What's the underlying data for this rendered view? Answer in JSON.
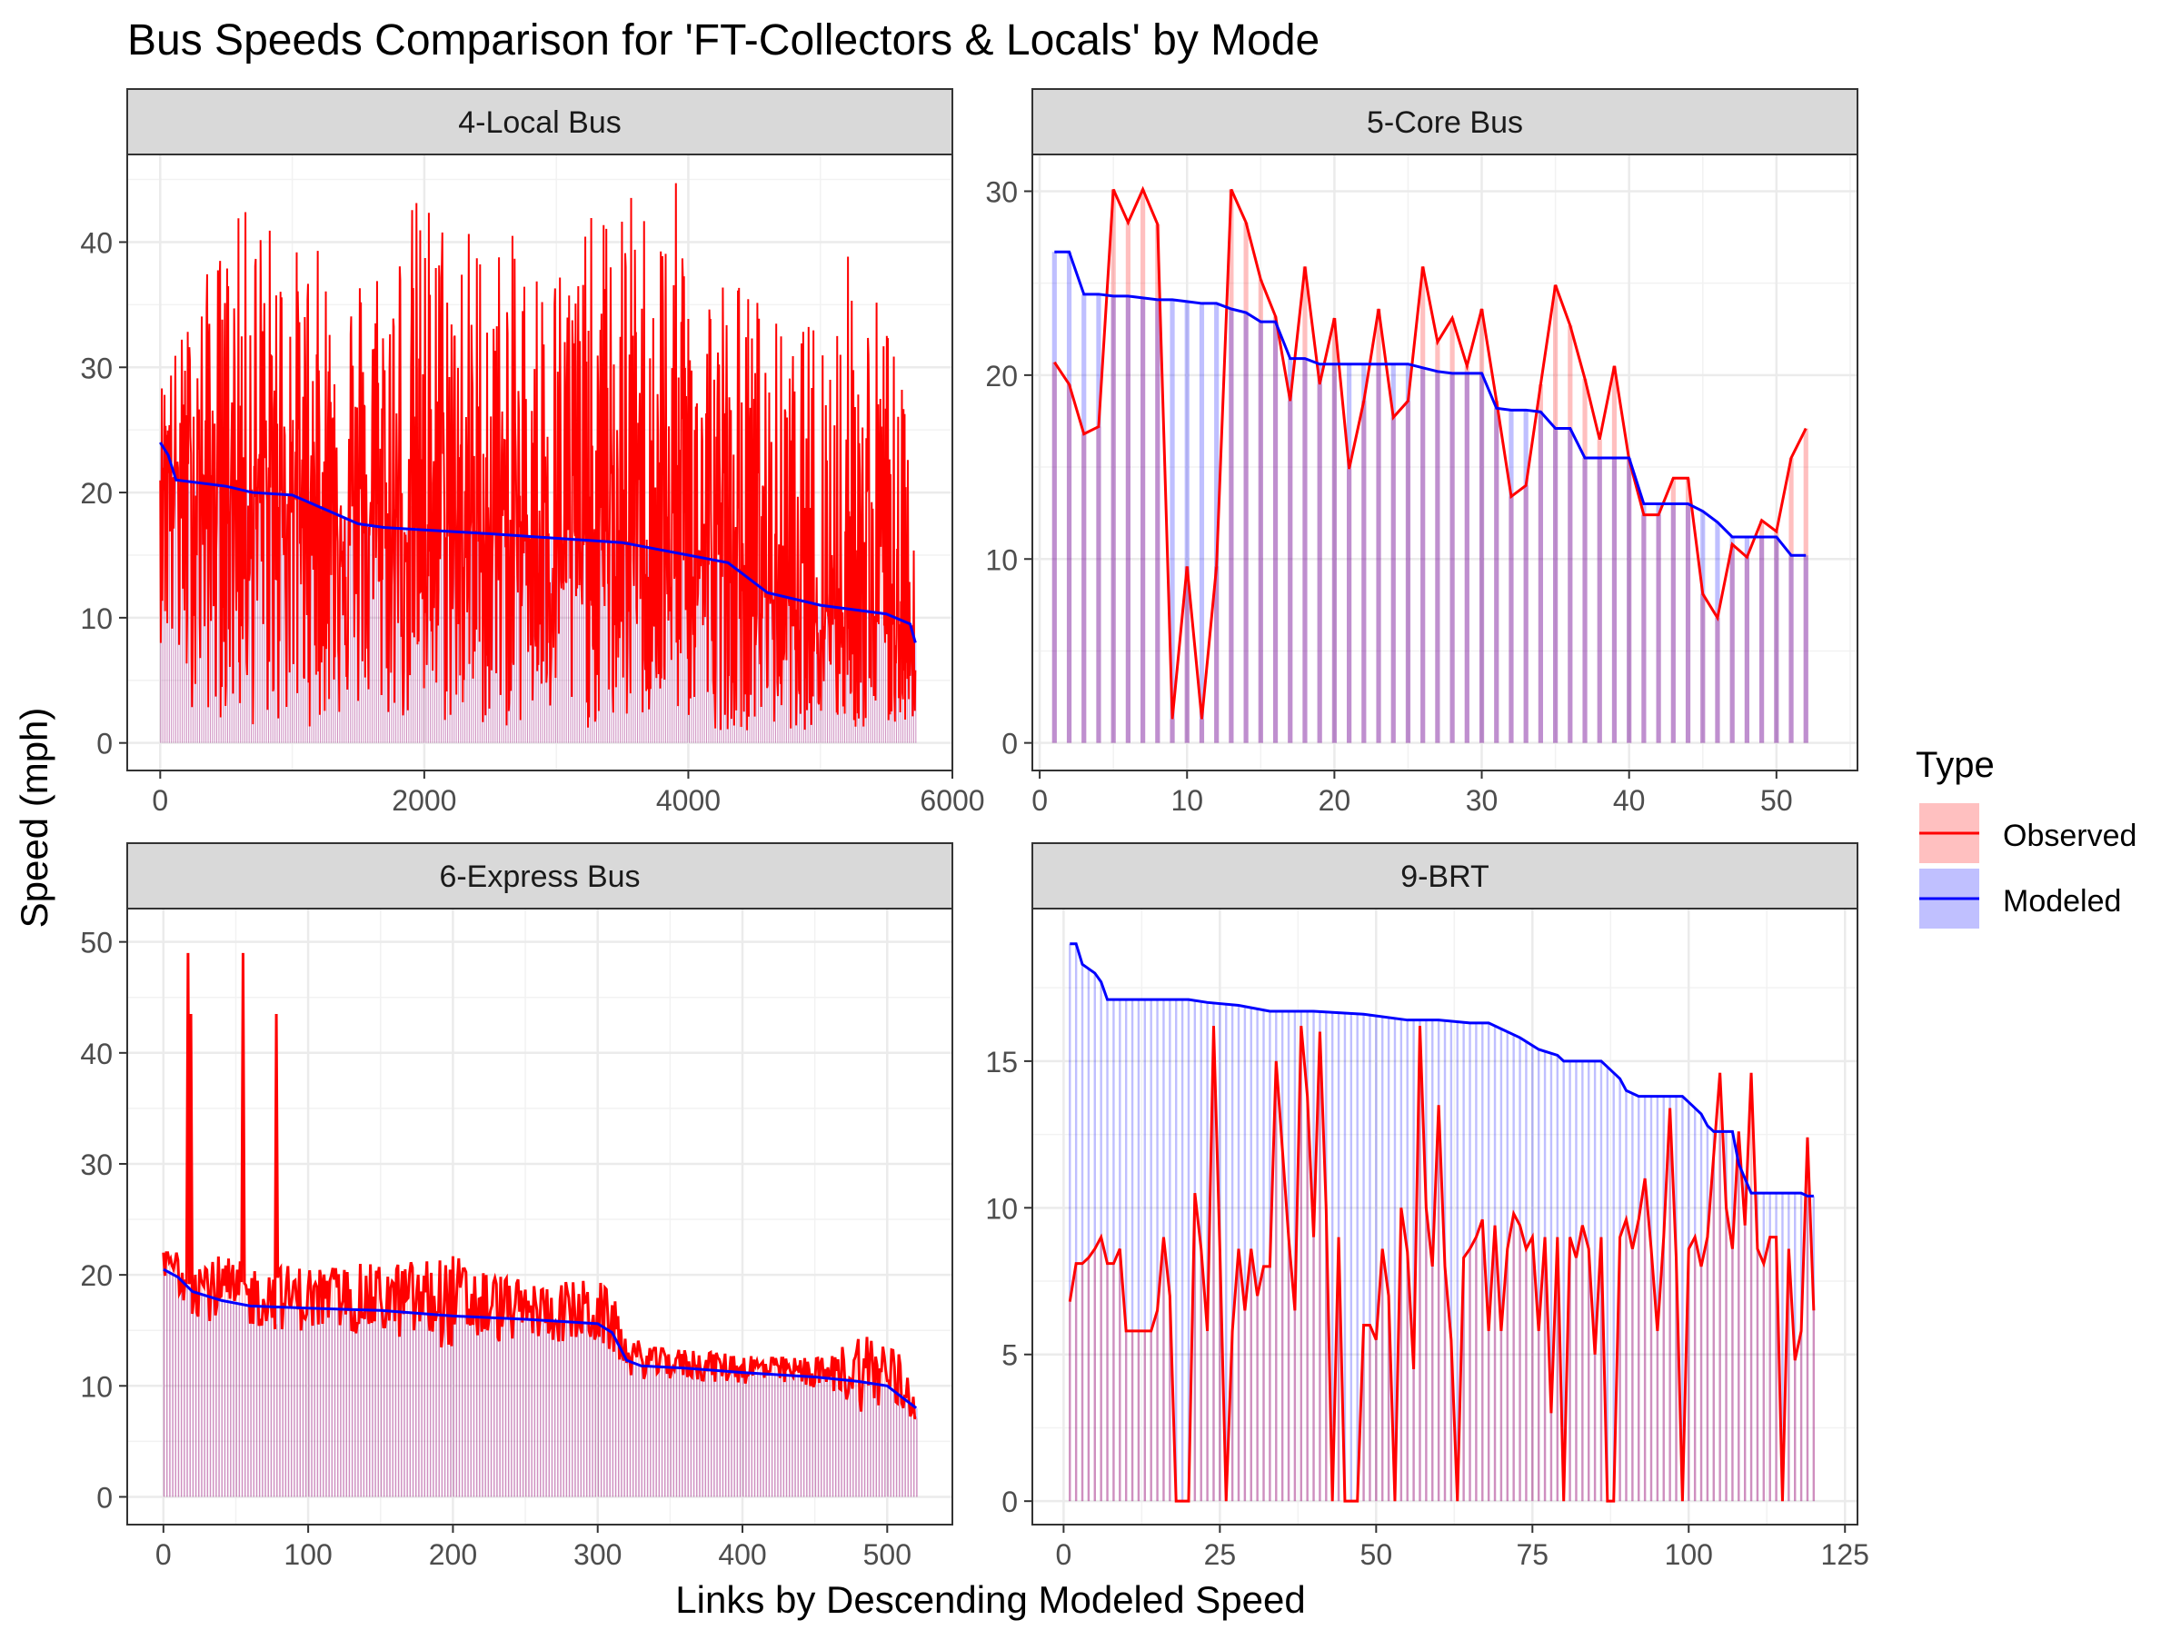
{
  "title": "Bus Speeds Comparison for 'FT-Collectors & Locals' by Mode",
  "xlabel": "Links by Descending Modeled Speed",
  "ylabel": "Speed (mph)",
  "legend": {
    "title": "Type",
    "placement": "right",
    "items": [
      {
        "label": "Observed",
        "line_color": "#ff0000",
        "fill_color": "#ffc0c0"
      },
      {
        "label": "Modeled",
        "line_color": "#0000ff",
        "fill_color": "#c0c0ff"
      }
    ]
  },
  "chart_data": [
    {
      "type": "line",
      "facet": "4-Local Bus",
      "xlim": [
        -250,
        6000
      ],
      "ylim": [
        -2.2,
        47
      ],
      "xticks": [
        0,
        2000,
        4000,
        6000
      ],
      "yticks": [
        0,
        10,
        20,
        30,
        40
      ],
      "n_links": 5720,
      "modeled": {
        "x": [
          0,
          60,
          120,
          500,
          700,
          1000,
          1500,
          1700,
          2500,
          3500,
          4000,
          4300,
          4600,
          5000,
          5500,
          5680,
          5720
        ],
        "y": [
          24,
          23,
          21,
          20.5,
          20,
          19.8,
          17.5,
          17.2,
          16.7,
          16,
          15,
          14.4,
          12,
          11,
          10.3,
          9.5,
          8
        ]
      },
      "observed_envelope": {
        "x": [
          0,
          200,
          400,
          700,
          1000,
          1500,
          2000,
          2500,
          3000,
          3500,
          3900,
          4100,
          4500,
          4800,
          5200,
          5500,
          5720
        ],
        "max": [
          29,
          34,
          39,
          44,
          40,
          39,
          45,
          41,
          40,
          44,
          45,
          40,
          37,
          32,
          40,
          36,
          22
        ],
        "min": [
          8,
          3,
          2,
          1,
          1,
          2,
          1,
          1,
          1,
          1,
          2,
          1,
          1,
          1,
          1,
          0.5,
          2
        ]
      }
    },
    {
      "type": "line",
      "facet": "5-Core Bus",
      "xlim": [
        -0.5,
        55.5
      ],
      "ylim": [
        -1.5,
        32
      ],
      "xticks": [
        0,
        10,
        20,
        30,
        40,
        50
      ],
      "yticks": [
        0,
        10,
        20,
        30
      ],
      "x": [
        1,
        2,
        3,
        4,
        5,
        6,
        7,
        8,
        9,
        10,
        11,
        12,
        13,
        14,
        15,
        16,
        17,
        18,
        19,
        20,
        21,
        22,
        23,
        24,
        25,
        26,
        27,
        28,
        29,
        30,
        31,
        32,
        33,
        34,
        35,
        36,
        37,
        38,
        39,
        40,
        41,
        42,
        43,
        44,
        45,
        46,
        47,
        48,
        49,
        50,
        51,
        52
      ],
      "observed": [
        20.7,
        19.5,
        16.8,
        17.2,
        30.1,
        28.3,
        30.1,
        28.2,
        1.3,
        9.6,
        1.3,
        9.6,
        30.1,
        28.3,
        25.2,
        23.2,
        18.6,
        25.9,
        19.5,
        23.1,
        14.9,
        18.6,
        23.6,
        17.7,
        18.6,
        25.9,
        21.8,
        23.1,
        20.5,
        23.6,
        18.6,
        13.4,
        14.0,
        19.5,
        24.9,
        22.7,
        19.8,
        16.5,
        20.5,
        15.4,
        12.4,
        12.4,
        14.4,
        14.4,
        8.1,
        6.8,
        10.8,
        10.1,
        12.1,
        11.5,
        15.5,
        17.1
      ],
      "modeled": [
        26.7,
        26.7,
        24.4,
        24.4,
        24.3,
        24.3,
        24.2,
        24.1,
        24.1,
        24.0,
        23.9,
        23.9,
        23.6,
        23.4,
        22.9,
        22.9,
        20.9,
        20.9,
        20.6,
        20.6,
        20.6,
        20.6,
        20.6,
        20.6,
        20.6,
        20.4,
        20.2,
        20.1,
        20.1,
        20.1,
        18.2,
        18.1,
        18.1,
        18.0,
        17.1,
        17.1,
        15.5,
        15.5,
        15.5,
        15.5,
        13.0,
        13.0,
        13.0,
        13.0,
        12.6,
        12.0,
        11.2,
        11.2,
        11.2,
        11.2,
        10.2,
        10.2
      ]
    },
    {
      "type": "line",
      "facet": "6-Express Bus",
      "xlim": [
        -25,
        545
      ],
      "ylim": [
        -2.5,
        53
      ],
      "xticks": [
        0,
        100,
        200,
        300,
        400,
        500
      ],
      "yticks": [
        0,
        10,
        20,
        30,
        40,
        50
      ],
      "n_links": 520,
      "modeled": {
        "x": [
          0,
          10,
          20,
          40,
          60,
          100,
          150,
          200,
          250,
          300,
          310,
          320,
          330,
          360,
          400,
          450,
          480,
          500,
          510,
          520
        ],
        "y": [
          20.5,
          19.8,
          18.5,
          17.7,
          17.2,
          17.0,
          16.8,
          16.3,
          16.0,
          15.6,
          14.8,
          12.3,
          11.8,
          11.6,
          11.2,
          10.8,
          10.4,
          10.0,
          9.0,
          8.0
        ]
      },
      "observed_spikes": [
        {
          "x": 17,
          "y": 49
        },
        {
          "x": 19,
          "y": 43.5
        },
        {
          "x": 55,
          "y": 49
        },
        {
          "x": 78,
          "y": 43.5
        }
      ],
      "observed_envelope": {
        "x": [
          0,
          30,
          60,
          100,
          150,
          200,
          250,
          300,
          330,
          380,
          420,
          460,
          480,
          500,
          520
        ],
        "max": [
          22,
          22,
          21,
          22.5,
          22.5,
          22.5,
          19.5,
          22,
          13.5,
          13,
          12.5,
          12.5,
          22,
          20,
          13.5
        ],
        "min": [
          11,
          8,
          8,
          9,
          8,
          3,
          8,
          8,
          6,
          6,
          6,
          6,
          5,
          3,
          5
        ]
      }
    },
    {
      "type": "line",
      "facet": "9-BRT",
      "xlim": [
        -5,
        127
      ],
      "ylim": [
        -0.8,
        20.2
      ],
      "xticks": [
        0,
        25,
        50,
        75,
        100,
        125
      ],
      "yticks": [
        0,
        5,
        10,
        15
      ],
      "n_links": 120,
      "modeled": {
        "x": [
          1,
          2,
          3,
          5,
          6,
          7,
          20,
          23,
          28,
          33,
          40,
          48,
          55,
          60,
          65,
          68,
          70,
          73,
          76,
          79,
          80,
          86,
          87,
          89,
          90,
          92,
          93,
          99,
          100,
          101,
          102,
          103,
          104,
          107,
          108,
          109,
          110,
          118,
          119,
          120
        ],
        "y": [
          19.0,
          19.0,
          18.3,
          18.0,
          17.7,
          17.1,
          17.1,
          17.0,
          16.9,
          16.7,
          16.7,
          16.6,
          16.4,
          16.4,
          16.3,
          16.3,
          16.1,
          15.8,
          15.4,
          15.2,
          15.0,
          15.0,
          14.8,
          14.4,
          14.0,
          13.8,
          13.8,
          13.8,
          13.6,
          13.4,
          13.2,
          12.8,
          12.6,
          12.6,
          11.5,
          11.0,
          10.5,
          10.5,
          10.4,
          10.4
        ]
      },
      "observed": {
        "x": [
          1,
          2,
          3,
          4,
          5,
          6,
          7,
          8,
          9,
          10,
          11,
          12,
          13,
          14,
          15,
          16,
          17,
          18,
          19,
          20,
          21,
          22,
          23,
          24,
          25,
          26,
          27,
          28,
          29,
          30,
          31,
          32,
          33,
          34,
          35,
          36,
          37,
          38,
          39,
          40,
          41,
          42,
          43,
          44,
          45,
          46,
          47,
          48,
          49,
          50,
          51,
          52,
          53,
          54,
          55,
          56,
          57,
          58,
          59,
          60,
          61,
          62,
          63,
          64,
          65,
          66,
          67,
          68,
          69,
          70,
          71,
          72,
          73,
          74,
          75,
          76,
          77,
          78,
          79,
          80,
          81,
          82,
          83,
          84,
          85,
          86,
          87,
          88,
          89,
          90,
          91,
          92,
          93,
          94,
          95,
          96,
          97,
          98,
          99,
          100,
          101,
          102,
          103,
          104,
          105,
          106,
          107,
          108,
          109,
          110,
          111,
          112,
          113,
          114,
          115,
          116,
          117,
          118,
          119,
          120
        ],
        "y": [
          6.8,
          8.1,
          8.1,
          8.3,
          8.6,
          9.0,
          8.1,
          8.1,
          8.6,
          5.8,
          5.8,
          5.8,
          5.8,
          5.8,
          6.5,
          9.0,
          7.0,
          0.0,
          0.0,
          0.0,
          10.5,
          8.6,
          5.8,
          16.2,
          8.6,
          0.0,
          5.8,
          8.6,
          6.5,
          8.6,
          7.0,
          8.0,
          8.0,
          15.0,
          12.0,
          9.0,
          6.5,
          16.2,
          13.8,
          9.0,
          16.0,
          10.0,
          0.0,
          9.0,
          0.0,
          0.0,
          0.0,
          6.0,
          6.0,
          5.5,
          8.6,
          7.0,
          0.0,
          10.0,
          8.5,
          4.5,
          16.2,
          10.0,
          8.0,
          13.5,
          8.0,
          5.5,
          0.0,
          8.3,
          8.6,
          9.0,
          9.6,
          5.8,
          9.4,
          5.8,
          8.6,
          9.8,
          9.4,
          8.6,
          9.0,
          5.8,
          9.0,
          3.0,
          9.0,
          0.0,
          9.0,
          8.3,
          9.4,
          8.6,
          5.0,
          9.0,
          0.0,
          0.0,
          9.0,
          9.6,
          8.6,
          9.6,
          11.0,
          8.6,
          5.8,
          9.0,
          13.4,
          8.3,
          0.0,
          8.6,
          9.0,
          8.0,
          9.0,
          11.8,
          14.6,
          10.0,
          8.6,
          12.6,
          9.4,
          14.6,
          8.6,
          8.1,
          9.0,
          9.0,
          0.0,
          8.6,
          4.8,
          5.8,
          12.4,
          6.5
        ]
      }
    }
  ]
}
